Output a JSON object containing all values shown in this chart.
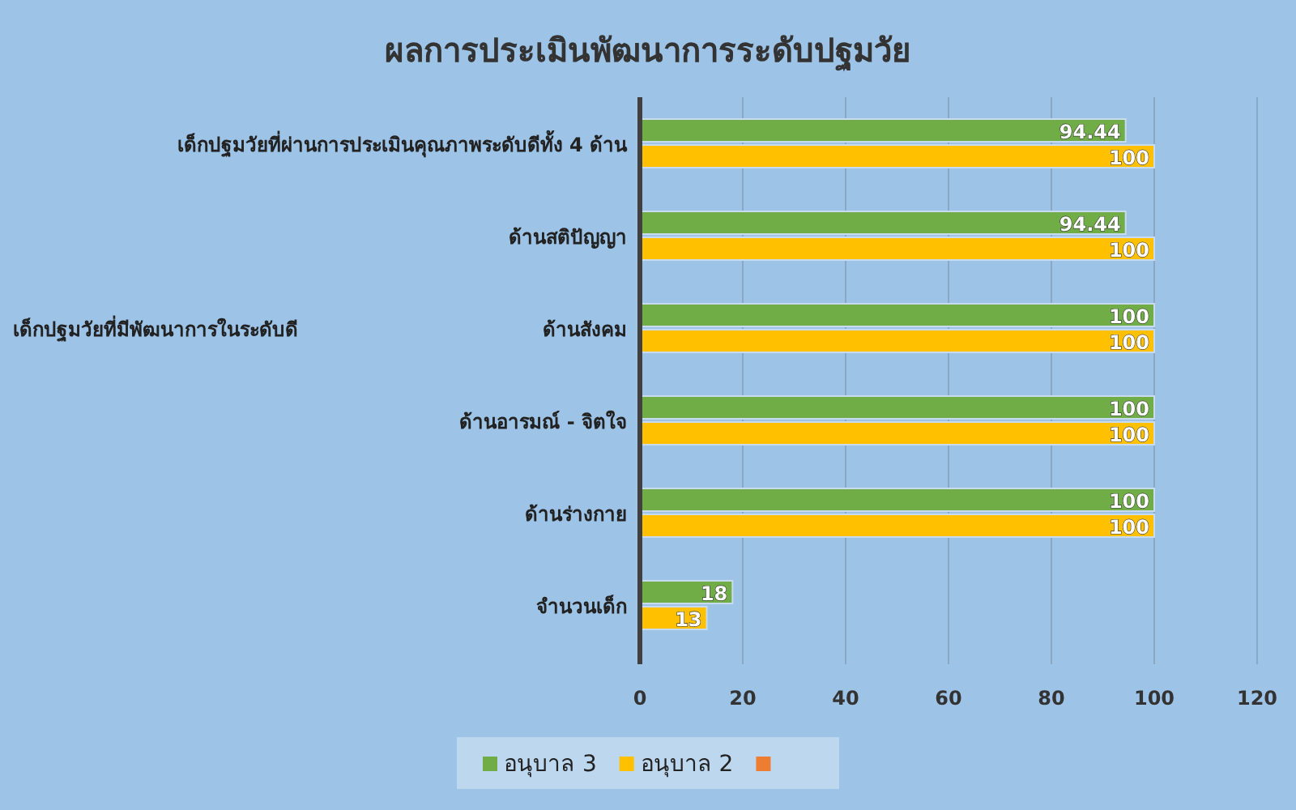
{
  "chart_data": {
    "type": "bar",
    "orientation": "horizontal",
    "title": "ผลการประเมินพัฒนาการระดับปฐมวัย",
    "categories": [
      "เด็กปฐมวัยที่ผ่านการประเมินคุณภาพระดับดีทั้ง 4 ด้าน",
      "ด้านสติปัญญา",
      "ด้านสังคม",
      "ด้านอารมณ์ - จิตใจ",
      "ด้านร่างกาย",
      "จำนวนเด็ก"
    ],
    "series": [
      {
        "name": "อนุบาล 3",
        "color": "#70ad47",
        "values": [
          94.44,
          94.44,
          100,
          100,
          100,
          18
        ]
      },
      {
        "name": "อนุบาล 2",
        "color": "#ffc000",
        "values": [
          100,
          100,
          100,
          100,
          100,
          13
        ]
      },
      {
        "color": "#ed7d31",
        "values": [
          null,
          null,
          null,
          null,
          null,
          null
        ]
      }
    ],
    "annotations": [
      "เด็กปฐมวัยที่มีพัฒนาการในระดับดี"
    ],
    "xlim": [
      0,
      120
    ],
    "xticks": [
      0,
      20,
      40,
      60,
      80,
      100,
      120
    ],
    "grid": "x",
    "legend": "bottom",
    "data_labels": true
  }
}
